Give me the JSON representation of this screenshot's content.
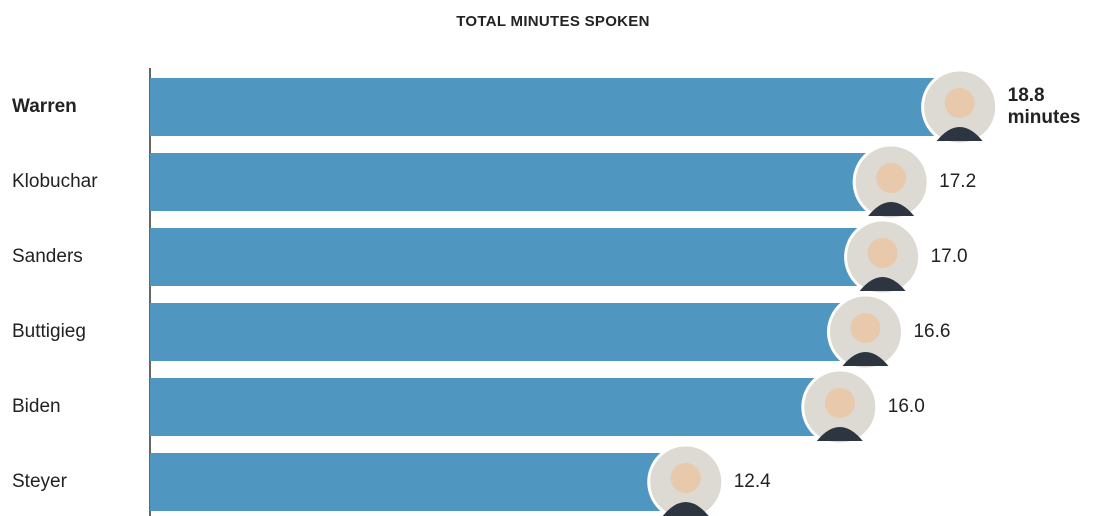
{
  "chart_data": {
    "type": "bar",
    "orientation": "horizontal",
    "title": "TOTAL MINUTES SPOKEN",
    "categories": [
      "Warren",
      "Klobuchar",
      "Sanders",
      "Buttigieg",
      "Biden",
      "Steyer"
    ],
    "values": [
      18.8,
      17.2,
      17.0,
      16.6,
      16.0,
      12.4
    ],
    "value_labels": [
      "18.8 minutes",
      "17.2",
      "17.0",
      "16.6",
      "16.0",
      "12.4"
    ],
    "color": "#4f97c0",
    "xlim": [
      0,
      20
    ]
  }
}
